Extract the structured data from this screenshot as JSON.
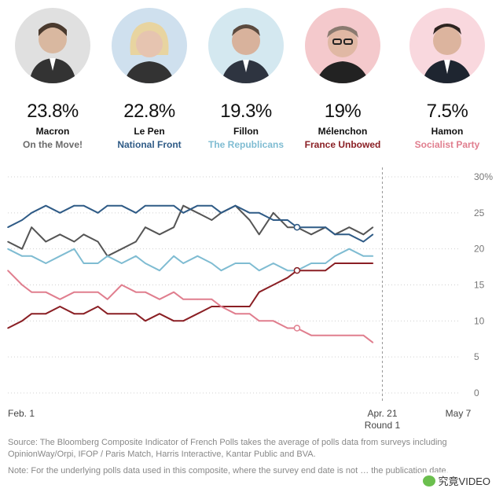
{
  "candidates": [
    {
      "pct": "23.8%",
      "name": "Macron",
      "party": "On the Move!",
      "party_color": "#6b6b6b",
      "bg": "#e0e0e0",
      "icon": "portrait-icon"
    },
    {
      "pct": "22.8%",
      "name": "Le Pen",
      "party": "National Front",
      "party_color": "#2f5b86",
      "bg": "#cfe0ee",
      "icon": "portrait-icon"
    },
    {
      "pct": "19.3%",
      "name": "Fillon",
      "party": "The Republicans",
      "party_color": "#7fbcd2",
      "bg": "#d4e8f0",
      "icon": "portrait-icon"
    },
    {
      "pct": "19%",
      "name": "Mélenchon",
      "party": "France Unbowed",
      "party_color": "#8a1f24",
      "bg": "#f4c9cc",
      "icon": "portrait-icon"
    },
    {
      "pct": "7.5%",
      "name": "Hamon",
      "party": "Socialist Party",
      "party_color": "#e07e8e",
      "bg": "#f9d8de",
      "icon": "portrait-icon"
    }
  ],
  "chart_data": {
    "type": "line",
    "x_tick_labels": [
      "Feb. 1",
      "Apr. 21",
      "May 7"
    ],
    "round_label": "Round 1",
    "y_tick_labels": [
      "30%",
      "25",
      "20",
      "15",
      "10",
      "5",
      "0"
    ],
    "ylim": [
      0,
      30
    ],
    "y_ticks": [
      30,
      25,
      20,
      15,
      10,
      5,
      0
    ],
    "x_ticks_day": [
      0,
      79,
      95
    ],
    "xlim_day": [
      0,
      95
    ],
    "round1_day": 79,
    "grid": "horizontal dotted",
    "series": [
      {
        "name": "Macron",
        "color": "#555555",
        "marker_day": 61,
        "x": [
          0,
          3,
          5,
          8,
          11,
          14,
          16,
          19,
          21,
          24,
          27,
          29,
          32,
          35,
          37,
          40,
          43,
          45,
          48,
          51,
          53,
          56,
          59,
          61,
          64,
          67,
          69,
          72,
          75,
          77
        ],
        "y": [
          21,
          20,
          23,
          21,
          22,
          21,
          22,
          21,
          19,
          20,
          21,
          23,
          22,
          23,
          26,
          25,
          24,
          25,
          26,
          24,
          22,
          25,
          23,
          23,
          22,
          23,
          22,
          23,
          22,
          23
        ]
      },
      {
        "name": "Le Pen",
        "color": "#2f5b86",
        "marker_day": 61,
        "x": [
          0,
          3,
          5,
          8,
          11,
          14,
          16,
          19,
          21,
          24,
          27,
          29,
          32,
          35,
          37,
          40,
          43,
          45,
          48,
          51,
          53,
          56,
          59,
          61,
          64,
          67,
          69,
          72,
          75,
          77
        ],
        "y": [
          23,
          24,
          25,
          26,
          25,
          26,
          26,
          25,
          26,
          26,
          25,
          26,
          26,
          26,
          25,
          26,
          26,
          25,
          26,
          25,
          25,
          24,
          24,
          23,
          23,
          23,
          22,
          22,
          21,
          22
        ]
      },
      {
        "name": "Fillon",
        "color": "#7fbcd2",
        "marker_day": 61,
        "x": [
          0,
          3,
          5,
          8,
          11,
          14,
          16,
          19,
          21,
          24,
          27,
          29,
          32,
          35,
          37,
          40,
          43,
          45,
          48,
          51,
          53,
          56,
          59,
          61,
          64,
          67,
          69,
          72,
          75,
          77
        ],
        "y": [
          20,
          19,
          19,
          18,
          19,
          20,
          18,
          18,
          19,
          18,
          19,
          18,
          17,
          19,
          18,
          19,
          18,
          17,
          18,
          18,
          17,
          18,
          17,
          17,
          18,
          18,
          19,
          20,
          19,
          19
        ]
      },
      {
        "name": "Mélenchon",
        "color": "#8a1f24",
        "marker_day": 61,
        "x": [
          0,
          3,
          5,
          8,
          11,
          14,
          16,
          19,
          21,
          24,
          27,
          29,
          32,
          35,
          37,
          40,
          43,
          45,
          48,
          51,
          53,
          56,
          59,
          61,
          64,
          67,
          69,
          72,
          75,
          77
        ],
        "y": [
          9,
          10,
          11,
          11,
          12,
          11,
          11,
          12,
          11,
          11,
          11,
          10,
          11,
          10,
          10,
          11,
          12,
          12,
          12,
          12,
          14,
          15,
          16,
          17,
          17,
          17,
          18,
          18,
          18,
          18
        ]
      },
      {
        "name": "Hamon",
        "color": "#e07e8e",
        "marker_day": 61,
        "x": [
          0,
          3,
          5,
          8,
          11,
          14,
          16,
          19,
          21,
          24,
          27,
          29,
          32,
          35,
          37,
          40,
          43,
          45,
          48,
          51,
          53,
          56,
          59,
          61,
          64,
          67,
          69,
          72,
          75,
          77
        ],
        "y": [
          17,
          15,
          14,
          14,
          13,
          14,
          14,
          14,
          13,
          15,
          14,
          14,
          13,
          14,
          13,
          13,
          13,
          12,
          11,
          11,
          10,
          10,
          9,
          9,
          8,
          8,
          8,
          8,
          8,
          7
        ]
      }
    ]
  },
  "footnotes": {
    "source": "Source: The Bloomberg Composite Indicator of French Polls takes the average of polls data from surveys including OpinionWay/Orpi, IFOP / Paris Match, Harris Interactive, Kantar Public and BVA.",
    "note": "Note: For the underlying polls data used in this composite, where the survey end date is not … the publication date."
  },
  "watermark": {
    "text": "究竟VIDEO",
    "icon": "wechat-logo-icon"
  }
}
